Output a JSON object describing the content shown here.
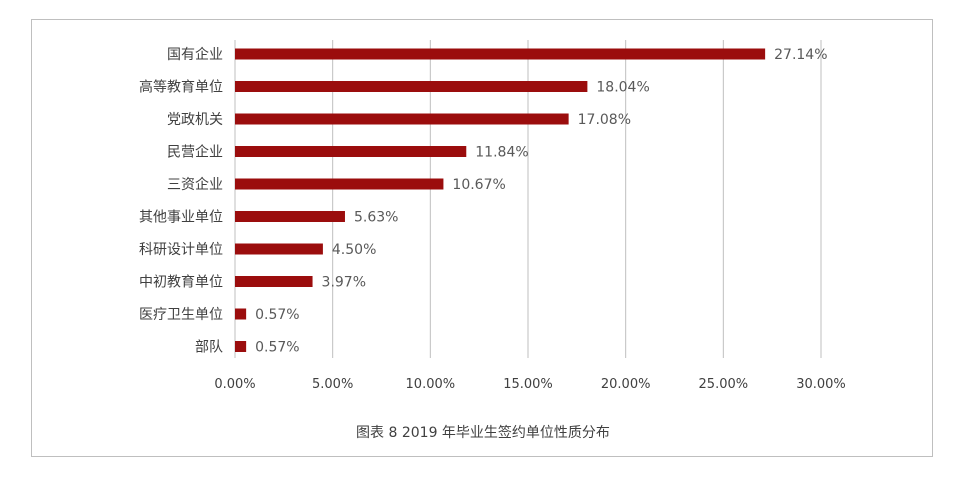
{
  "chart_data": {
    "type": "bar",
    "orientation": "horizontal",
    "categories": [
      "国有企业",
      "高等教育单位",
      "党政机关",
      "民营企业",
      "三资企业",
      "其他事业单位",
      "科研设计单位",
      "中初教育单位",
      "医疗卫生单位",
      "部队"
    ],
    "values": [
      27.14,
      18.04,
      17.08,
      11.84,
      10.67,
      5.63,
      4.5,
      3.97,
      0.57,
      0.57
    ],
    "value_labels": [
      "27.14%",
      "18.04%",
      "17.08%",
      "11.84%",
      "10.67%",
      "5.63%",
      "4.50%",
      "3.97%",
      "0.57%",
      "0.57%"
    ],
    "x_ticks": [
      0,
      5,
      10,
      15,
      20,
      25,
      30
    ],
    "x_tick_labels": [
      "0.00%",
      "5.00%",
      "10.00%",
      "15.00%",
      "20.00%",
      "25.00%",
      "30.00%"
    ],
    "xlim": [
      0,
      30
    ],
    "title": "图表 8  2019 年毕业生签约单位性质分布",
    "xlabel": "",
    "ylabel": "",
    "grid": true,
    "legend": "none",
    "colors": {
      "bar": "#9b0d0d",
      "grid": "#bfbfbf",
      "text": "#404040"
    }
  }
}
